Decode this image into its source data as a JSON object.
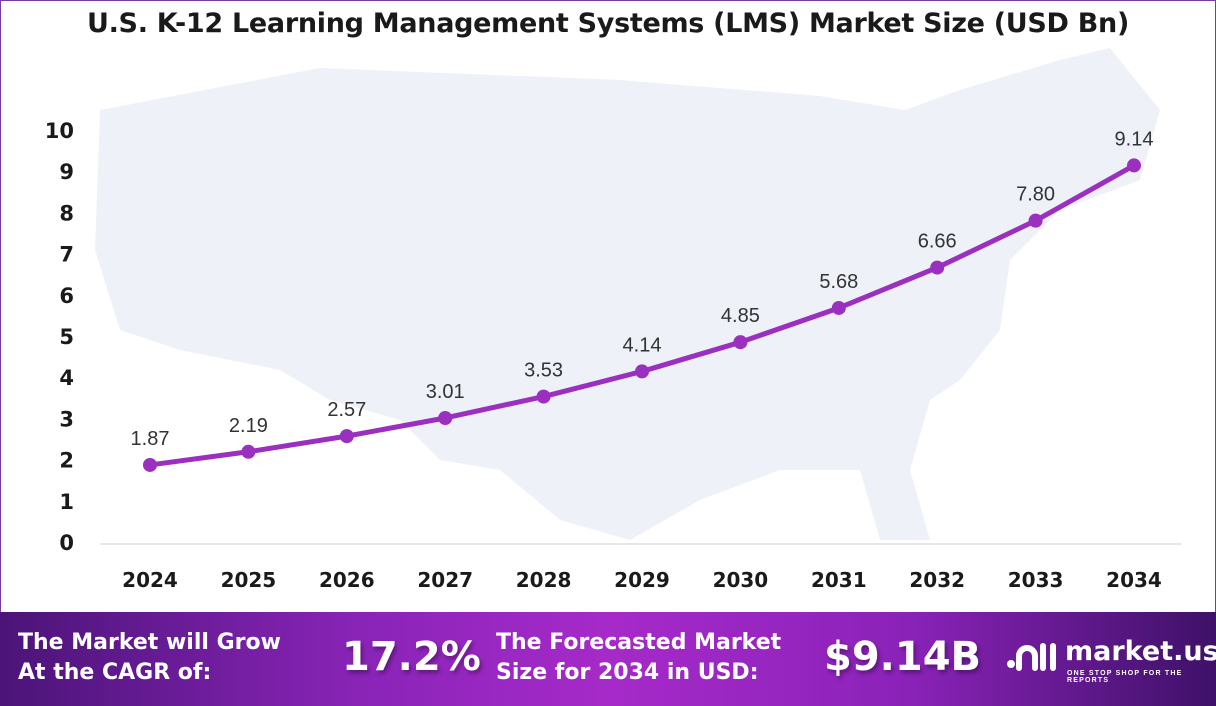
{
  "chart_data": {
    "type": "line",
    "title": "U.S. K-12 Learning Management Systems (LMS) Market Size (USD Bn)",
    "categories": [
      "2024",
      "2025",
      "2026",
      "2027",
      "2028",
      "2029",
      "2030",
      "2031",
      "2032",
      "2033",
      "2034"
    ],
    "values": [
      1.87,
      2.19,
      2.57,
      3.01,
      3.53,
      4.14,
      4.85,
      5.68,
      6.66,
      7.8,
      9.14
    ],
    "data_labels": [
      "1.87",
      "2.19",
      "2.57",
      "3.01",
      "3.53",
      "4.14",
      "4.85",
      "5.68",
      "6.66",
      "7.80",
      "9.14"
    ],
    "yticks": [
      "0",
      "1",
      "2",
      "3",
      "4",
      "5",
      "6",
      "7",
      "8",
      "9",
      "10"
    ],
    "ylim": [
      0,
      10
    ],
    "grid": false,
    "line_color": "#9a2fc0",
    "background_image": "US map silhouette"
  },
  "banner": {
    "cagr_label_line1": "The Market will Grow",
    "cagr_label_line2": "At the CAGR of:",
    "cagr_value": "17.2%",
    "forecast_label_line1": "The Forecasted Market",
    "forecast_label_line2": "Size for 2034 in USD:",
    "forecast_value": "$9.14B"
  },
  "logo": {
    "name": "market.us",
    "tagline": "ONE STOP SHOP FOR THE REPORTS"
  }
}
